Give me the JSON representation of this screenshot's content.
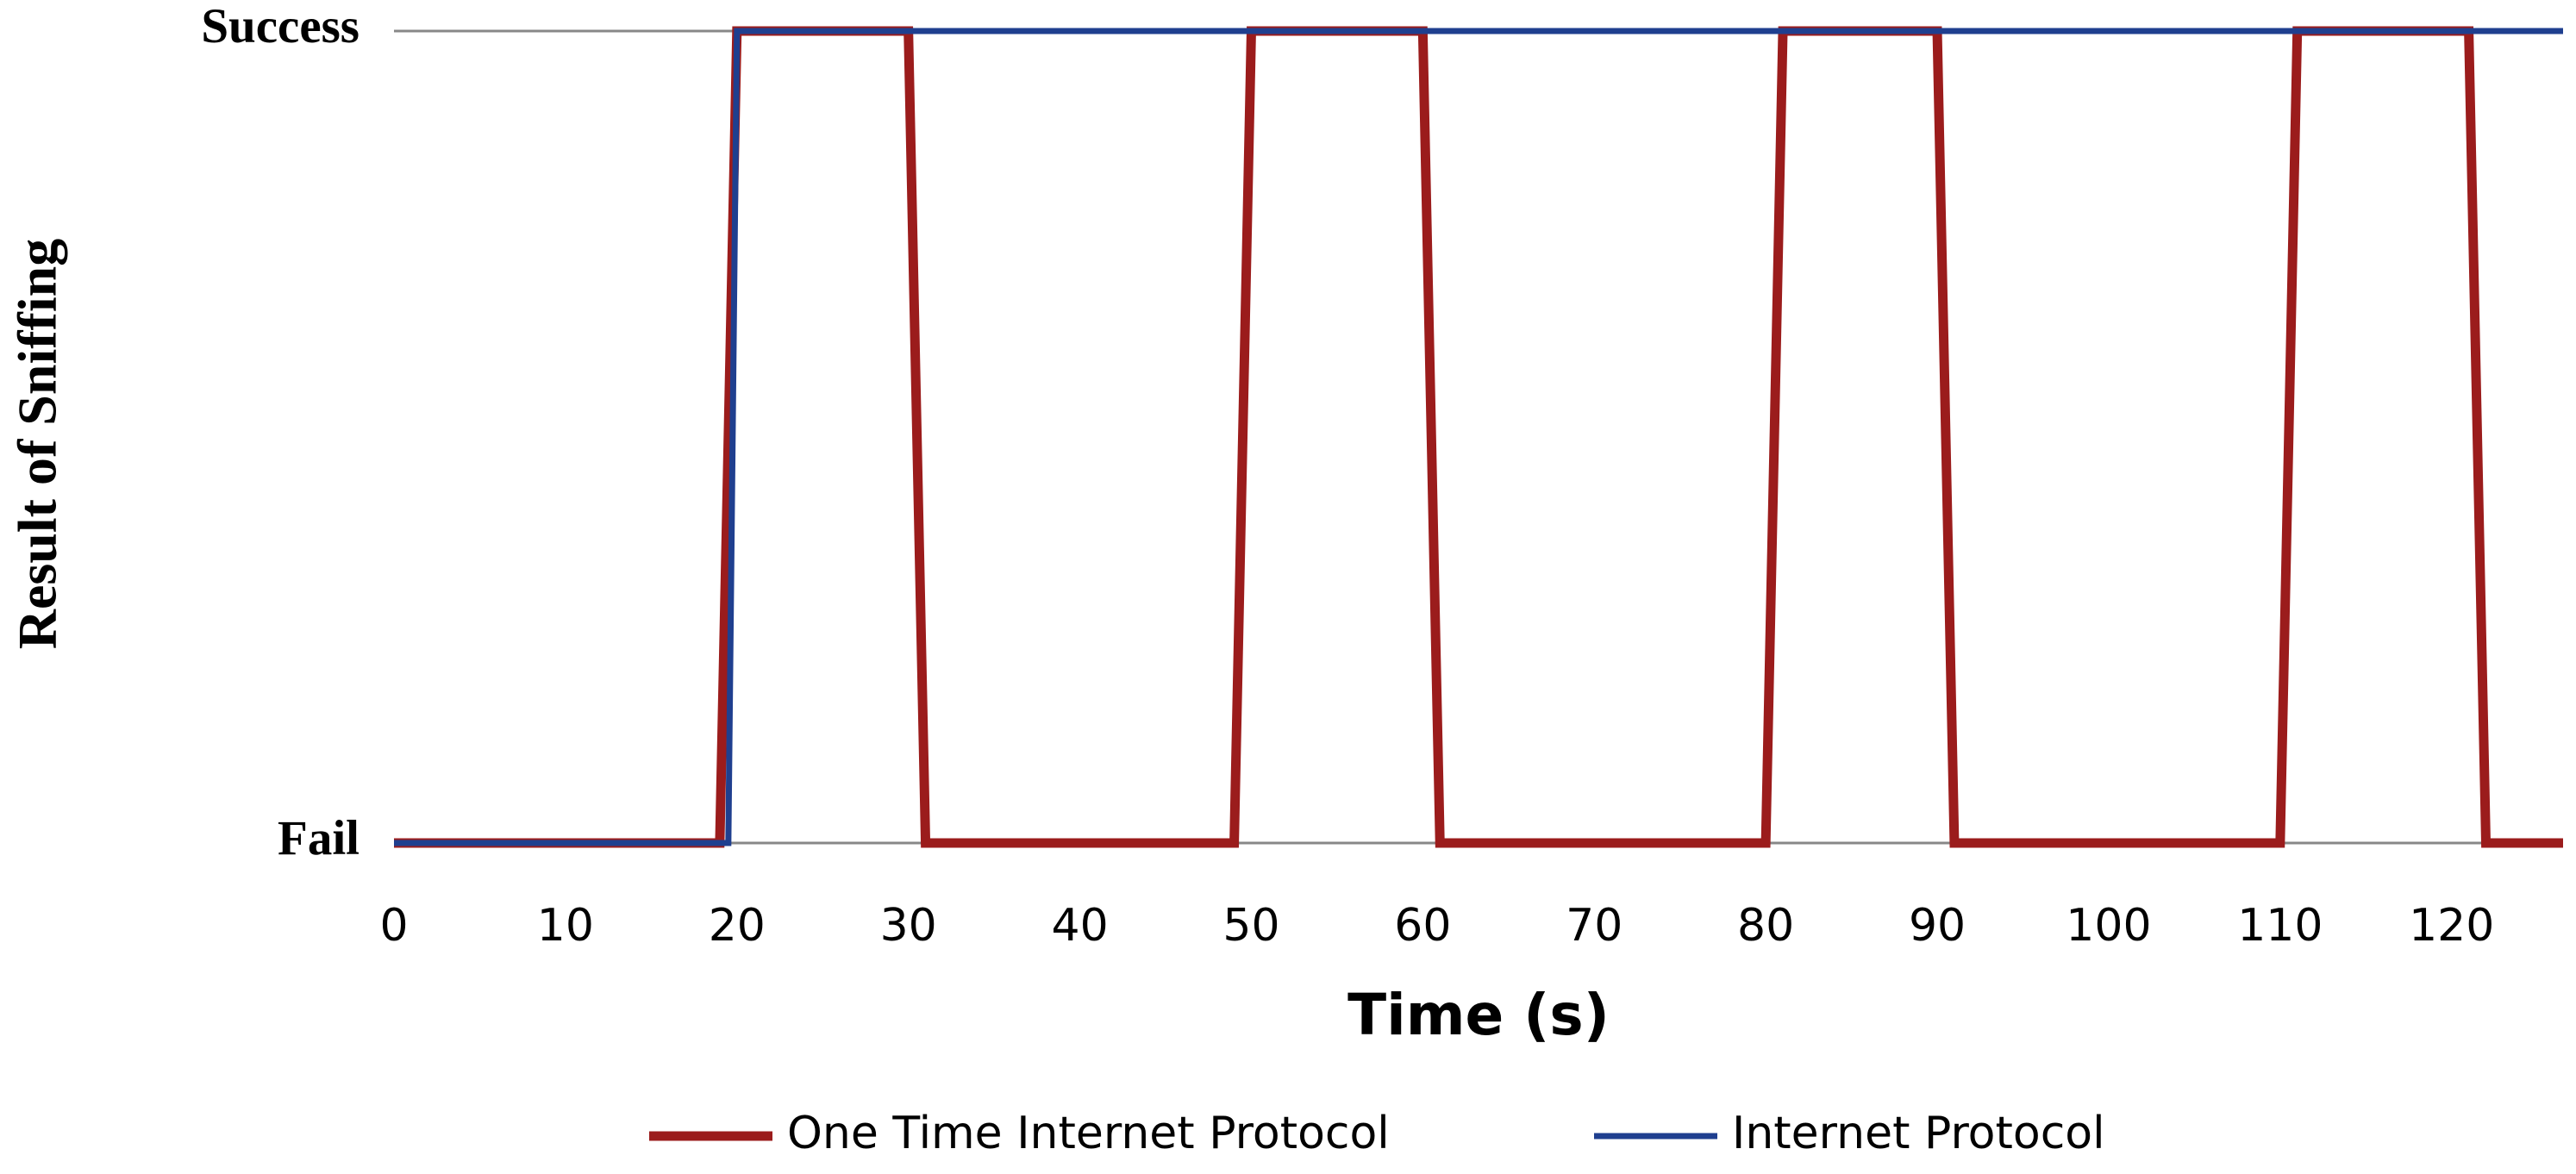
{
  "chart_data": {
    "type": "line",
    "x_label": "Time (s)",
    "y_label": "Result of Sniffing",
    "xlim": [
      0,
      126.5
    ],
    "ylim": [
      0,
      1
    ],
    "xticks": [
      0,
      10,
      20,
      30,
      40,
      50,
      60,
      70,
      80,
      90,
      100,
      110,
      120
    ],
    "yticks": [
      {
        "value": 0,
        "label": "Fail"
      },
      {
        "value": 1,
        "label": "Success"
      }
    ],
    "grid": true,
    "legend": "bottom",
    "series": [
      {
        "name": "One Time Internet Protocol",
        "color": "#9b1c1c",
        "x": [
          0,
          19,
          20,
          30,
          31,
          49,
          50,
          60,
          61,
          80,
          81,
          90,
          91,
          110,
          111,
          121,
          122,
          126.5
        ],
        "values": [
          0,
          0,
          1,
          1,
          0,
          0,
          1,
          1,
          0,
          0,
          1,
          1,
          0,
          0,
          1,
          1,
          0,
          0
        ]
      },
      {
        "name": "Internet Protocol",
        "color": "#1f3f8f",
        "x": [
          0,
          19.5,
          20,
          126.5
        ],
        "values": [
          0,
          0,
          1,
          1
        ]
      }
    ]
  }
}
